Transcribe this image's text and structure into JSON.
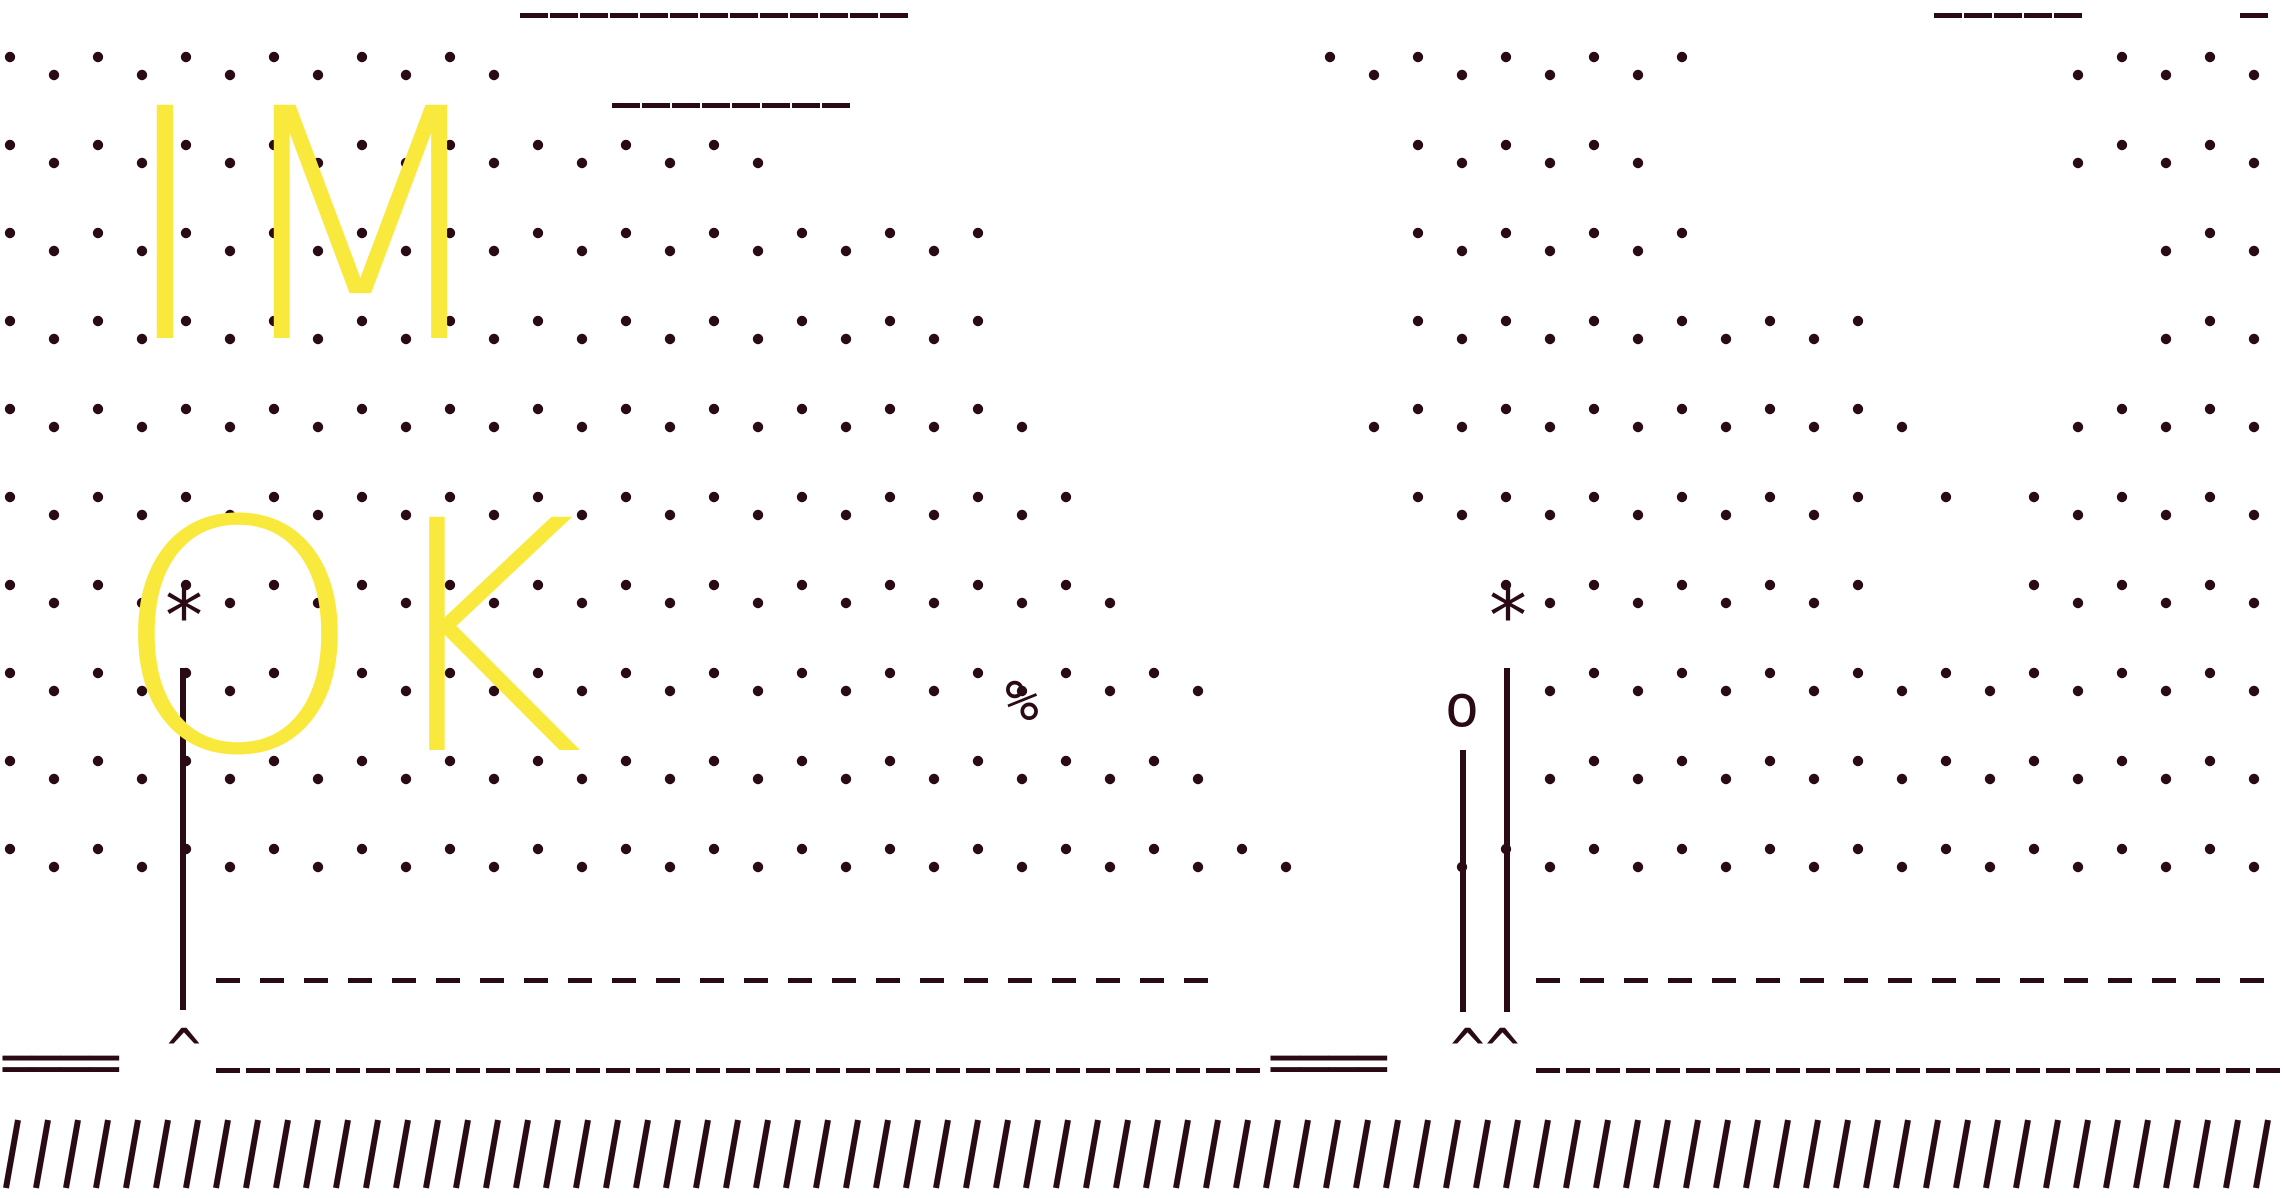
{
  "headline": {
    "line_1": "IM",
    "line_2": "OK"
  },
  "ascii_glyphs": {
    "left_star": "*",
    "right_star": "*",
    "percent": "%",
    "small_o": "o",
    "left_caret": "^",
    "right_carets": "^^",
    "left_equals": "====",
    "mid_equals": "===="
  },
  "colors": {
    "ink": "#2a0a14",
    "headline": "#f9e93d",
    "background": "#ffffff"
  }
}
